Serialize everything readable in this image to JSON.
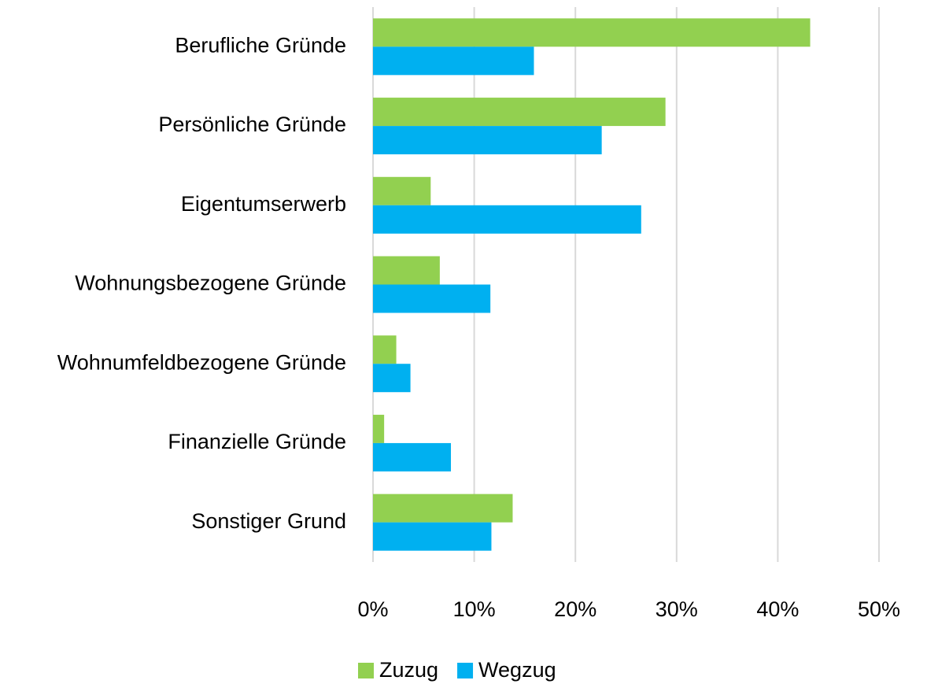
{
  "chart_data": {
    "type": "bar",
    "orientation": "horizontal",
    "categories": [
      "Berufliche Gründe",
      "Persönliche Gründe",
      "Eigentumserwerb",
      "Wohnungsbezogene Gründe",
      "Wohnumfeldbezogene Gründe",
      "Finanzielle Gründe",
      "Sonstiger Grund"
    ],
    "series": [
      {
        "name": "Zuzug",
        "color": "#92d050",
        "values": [
          43.2,
          28.9,
          5.7,
          6.6,
          2.3,
          1.1,
          13.8
        ]
      },
      {
        "name": "Wegzug",
        "color": "#00b0f0",
        "values": [
          15.9,
          22.6,
          26.5,
          11.6,
          3.7,
          7.7,
          11.7
        ]
      }
    ],
    "xlim": [
      0,
      50
    ],
    "xticks": [
      {
        "value": 0,
        "label": "0%"
      },
      {
        "value": 10,
        "label": "10%"
      },
      {
        "value": 20,
        "label": "20%"
      },
      {
        "value": 30,
        "label": "30%"
      },
      {
        "value": 40,
        "label": "40%"
      },
      {
        "value": 50,
        "label": "50%"
      }
    ],
    "grid": true,
    "legend": "bottom"
  }
}
